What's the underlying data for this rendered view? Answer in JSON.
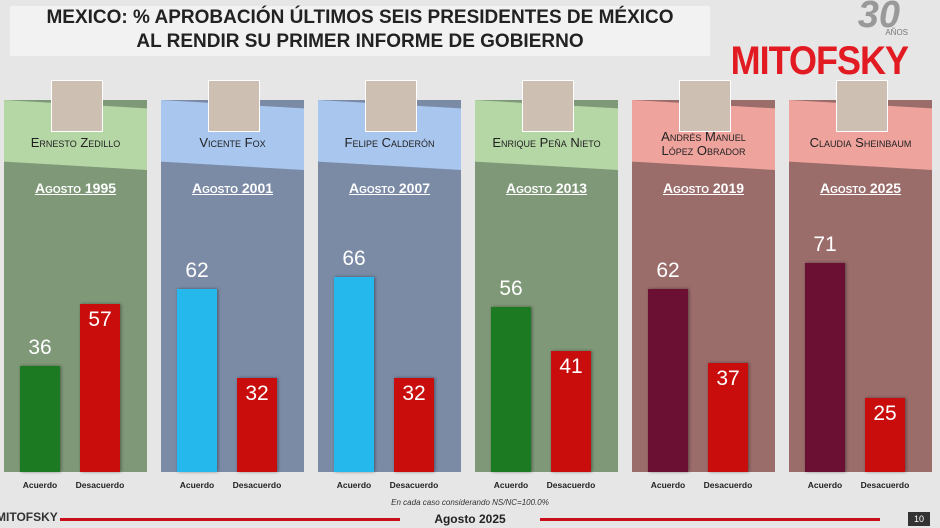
{
  "header": {
    "title": [
      "MEXICO: % APROBACIÓN ÚLTIMOS SEIS PRESIDENTES DE MÉXICO",
      "AL RENDIR SU PRIMER INFORME DE GOBIERNO"
    ],
    "logo": "MITOFSKY",
    "anniversary": "30",
    "anniversary_sub": "AÑOS"
  },
  "chart_data": [
    {
      "type": "bar",
      "title": "Ernesto Zedillo",
      "subtitle": "Agosto 1995",
      "categories": [
        "Acuerdo",
        "Desacuerdo"
      ],
      "values": [
        36,
        57
      ],
      "colors": [
        "#1b7a22",
        "#c90d0d"
      ],
      "background": "#7f9878",
      "header_color": "#b5d6a5"
    },
    {
      "type": "bar",
      "title": "Vicente Fox",
      "subtitle": "Agosto 2001",
      "categories": [
        "Acuerdo",
        "Desacuerdo"
      ],
      "values": [
        62,
        32
      ],
      "colors": [
        "#25b8ec",
        "#c90d0d"
      ],
      "background": "#7b8aa5",
      "header_color": "#a8c6ee"
    },
    {
      "type": "bar",
      "title": "Felipe Calderón",
      "subtitle": "Agosto 2007",
      "categories": [
        "Acuerdo",
        "Desacuerdo"
      ],
      "values": [
        66,
        32
      ],
      "colors": [
        "#25b8ec",
        "#c90d0d"
      ],
      "background": "#7b8aa5",
      "header_color": "#a8c6ee"
    },
    {
      "type": "bar",
      "title": "Enrique Peña Nieto",
      "subtitle": "Agosto 2013",
      "categories": [
        "Acuerdo",
        "Desacuerdo"
      ],
      "values": [
        56,
        41
      ],
      "colors": [
        "#1b7a22",
        "#c90d0d"
      ],
      "background": "#7f9878",
      "header_color": "#b5d6a5"
    },
    {
      "type": "bar",
      "title": "Andrés Manuel López Obrador",
      "subtitle": "Agosto 2019",
      "categories": [
        "Acuerdo",
        "Desacuerdo"
      ],
      "values": [
        62,
        37
      ],
      "colors": [
        "#6b0f33",
        "#c90d0d"
      ],
      "background": "#9a6c6a",
      "header_color": "#eea39d"
    },
    {
      "type": "bar",
      "title": "Claudia Sheinbaum",
      "subtitle": "Agosto 2025",
      "categories": [
        "Acuerdo",
        "Desacuerdo"
      ],
      "values": [
        71,
        25
      ],
      "colors": [
        "#6b0f33",
        "#c90d0d"
      ],
      "background": "#9a6c6a",
      "header_color": "#eea39d"
    }
  ],
  "footnote": "En cada caso considerando NS/NC=100.0%",
  "footer": {
    "logo": "MITOFSKY",
    "date": "Agosto 2025",
    "page": "10"
  }
}
